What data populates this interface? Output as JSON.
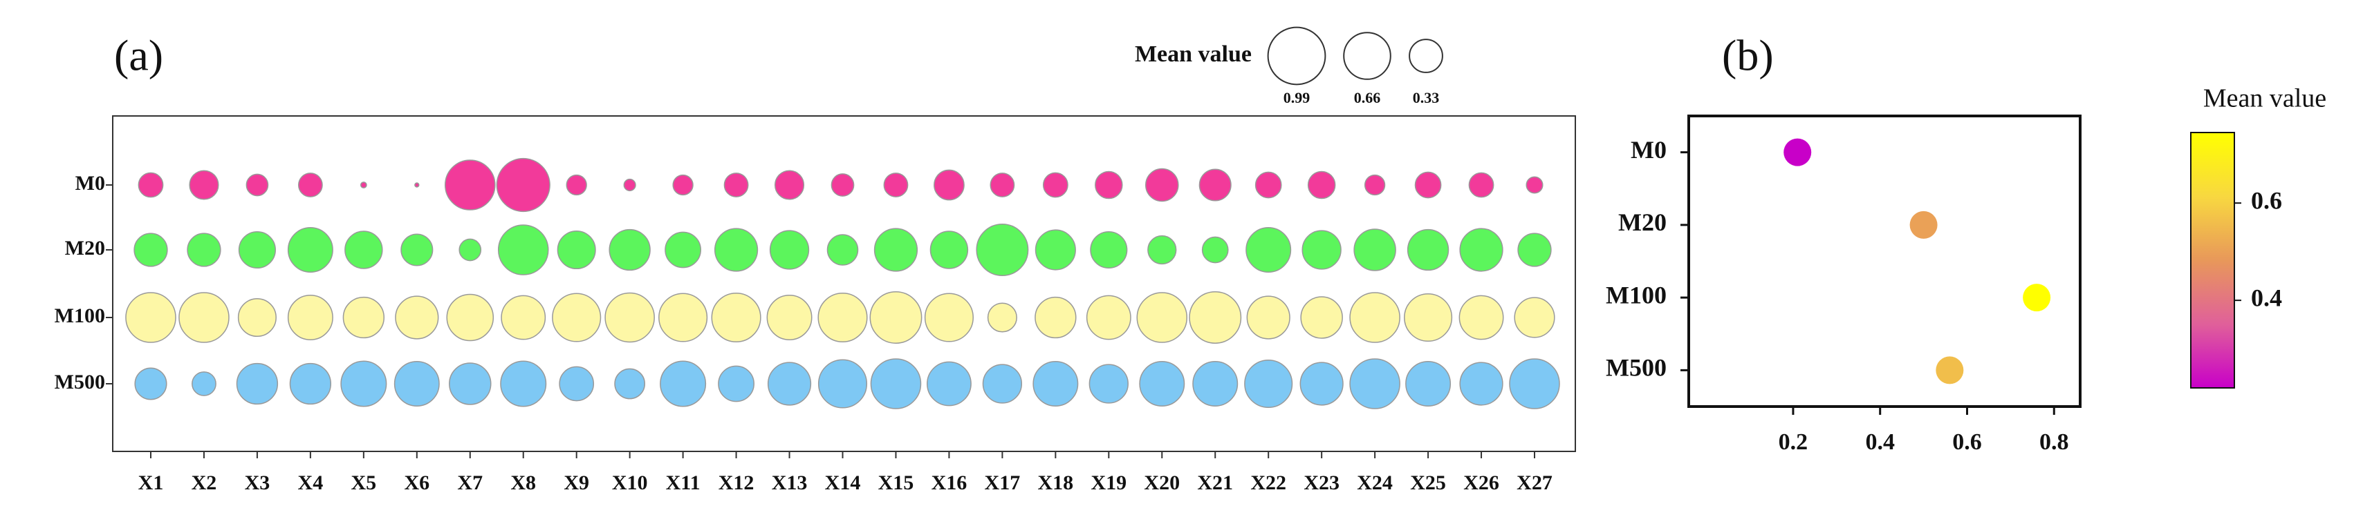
{
  "chart_data": [
    {
      "type": "bubble",
      "title": "(a)",
      "categories": [
        "X1",
        "X2",
        "X3",
        "X4",
        "X5",
        "X6",
        "X7",
        "X8",
        "X9",
        "X10",
        "X11",
        "X12",
        "X13",
        "X14",
        "X15",
        "X16",
        "X17",
        "X18",
        "X19",
        "X20",
        "X21",
        "X22",
        "X23",
        "X24",
        "X25",
        "X26",
        "X27"
      ],
      "series": [
        {
          "name": "M0",
          "color": "#f23a9a",
          "values": [
            0.18,
            0.25,
            0.14,
            0.17,
            0.01,
            0.005,
            0.75,
            0.85,
            0.12,
            0.04,
            0.12,
            0.17,
            0.25,
            0.15,
            0.17,
            0.27,
            0.17,
            0.18,
            0.22,
            0.32,
            0.3,
            0.2,
            0.22,
            0.12,
            0.2,
            0.18,
            0.08
          ]
        },
        {
          "name": "M20",
          "color": "#5cf55c",
          "values": [
            0.33,
            0.33,
            0.4,
            0.6,
            0.42,
            0.3,
            0.14,
            0.75,
            0.43,
            0.5,
            0.38,
            0.55,
            0.45,
            0.28,
            0.55,
            0.42,
            0.8,
            0.48,
            0.4,
            0.24,
            0.2,
            0.6,
            0.45,
            0.52,
            0.5,
            0.55,
            0.33
          ]
        },
        {
          "name": "M100",
          "color": "#fdf7a6",
          "values": [
            0.75,
            0.75,
            0.43,
            0.6,
            0.5,
            0.55,
            0.65,
            0.58,
            0.7,
            0.73,
            0.7,
            0.72,
            0.6,
            0.72,
            0.8,
            0.7,
            0.25,
            0.5,
            0.58,
            0.75,
            0.8,
            0.55,
            0.52,
            0.75,
            0.68,
            0.58,
            0.48
          ]
        },
        {
          "name": "M500",
          "color": "#7ec8f4",
          "values": [
            0.3,
            0.17,
            0.5,
            0.5,
            0.62,
            0.6,
            0.52,
            0.62,
            0.35,
            0.27,
            0.62,
            0.38,
            0.55,
            0.7,
            0.75,
            0.58,
            0.45,
            0.6,
            0.45,
            0.6,
            0.6,
            0.68,
            0.55,
            0.75,
            0.6,
            0.55,
            0.75
          ]
        }
      ],
      "size_legend": {
        "title": "Mean value",
        "values": [
          0.99,
          0.66,
          0.33
        ]
      }
    },
    {
      "type": "scatter",
      "title": "(b)",
      "categories": [
        "M0",
        "M20",
        "M100",
        "M500"
      ],
      "values": [
        0.21,
        0.5,
        0.76,
        0.56
      ],
      "xlim": [
        -0.04,
        0.86
      ],
      "xticks": [
        0.2,
        0.4,
        0.6,
        0.8
      ],
      "colorbar": {
        "title": "Mean value",
        "lim": [
          0.22,
          0.745
        ],
        "ticks": [
          0.4,
          0.6
        ],
        "colors": [
          "#c800c8",
          "#e0609a",
          "#e8985a",
          "#f8d840",
          "#ffff00"
        ]
      }
    }
  ]
}
